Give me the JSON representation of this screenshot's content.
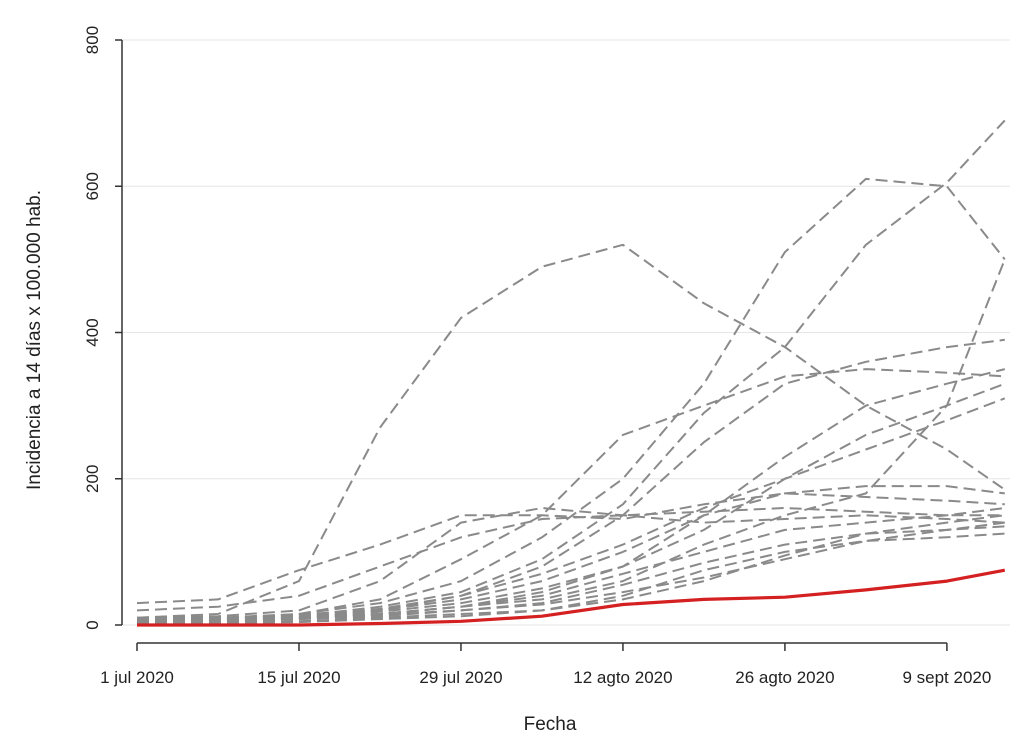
{
  "chart_data": {
    "type": "line",
    "xlabel": "Fecha",
    "ylabel": "Incidencia a 14 días x 100.000 hab.",
    "ylim": [
      0,
      800
    ],
    "yticks": [
      0,
      200,
      400,
      600,
      800
    ],
    "xlim": [
      0,
      73
    ],
    "xticks": [
      {
        "at": "2020-07-01",
        "label": "1 jul 2020"
      },
      {
        "at": "2020-07-15",
        "label": "15 jul 2020"
      },
      {
        "at": "2020-07-29",
        "label": "29 jul 2020"
      },
      {
        "at": "2020-08-12",
        "label": "12 agto 2020"
      },
      {
        "at": "2020-08-26",
        "label": "26 agto 2020"
      },
      {
        "at": "2020-09-09",
        "label": "9 sept 2020"
      }
    ],
    "grid": true,
    "highlight_color": "#d42020",
    "series_color": "#8a8a8a",
    "x_dates": [
      "2020-07-01",
      "2020-07-08",
      "2020-07-15",
      "2020-07-22",
      "2020-07-29",
      "2020-08-05",
      "2020-08-12",
      "2020-08-19",
      "2020-08-26",
      "2020-09-02",
      "2020-09-09",
      "2020-09-14"
    ],
    "series": [
      {
        "highlight": true,
        "values": [
          0,
          0,
          0,
          2,
          5,
          12,
          28,
          35,
          38,
          48,
          60,
          75
        ]
      },
      {
        "highlight": false,
        "values": [
          10,
          15,
          60,
          270,
          420,
          490,
          520,
          440,
          380,
          300,
          240,
          185
        ]
      },
      {
        "highlight": false,
        "values": [
          5,
          8,
          12,
          25,
          45,
          90,
          165,
          290,
          380,
          520,
          605,
          690
        ]
      },
      {
        "highlight": false,
        "values": [
          8,
          10,
          15,
          30,
          60,
          120,
          200,
          330,
          510,
          610,
          600,
          500
        ]
      },
      {
        "highlight": false,
        "values": [
          3,
          5,
          10,
          20,
          40,
          80,
          150,
          250,
          330,
          360,
          380,
          390
        ]
      },
      {
        "highlight": false,
        "values": [
          30,
          35,
          75,
          110,
          150,
          150,
          145,
          165,
          180,
          175,
          170,
          165
        ]
      },
      {
        "highlight": false,
        "values": [
          5,
          8,
          15,
          35,
          90,
          150,
          260,
          300,
          340,
          350,
          345,
          340
        ]
      },
      {
        "highlight": false,
        "values": [
          10,
          12,
          20,
          60,
          140,
          160,
          150,
          140,
          145,
          150,
          145,
          140
        ]
      },
      {
        "highlight": false,
        "values": [
          5,
          6,
          10,
          18,
          30,
          50,
          80,
          130,
          200,
          260,
          300,
          330
        ]
      },
      {
        "highlight": false,
        "values": [
          2,
          4,
          8,
          15,
          25,
          35,
          60,
          110,
          150,
          180,
          300,
          500
        ]
      },
      {
        "highlight": false,
        "values": [
          4,
          6,
          10,
          15,
          25,
          40,
          70,
          100,
          130,
          140,
          150,
          160
        ]
      },
      {
        "highlight": false,
        "values": [
          6,
          8,
          12,
          20,
          35,
          60,
          100,
          150,
          180,
          190,
          190,
          180
        ]
      },
      {
        "highlight": false,
        "values": [
          3,
          5,
          8,
          12,
          20,
          30,
          55,
          85,
          110,
          125,
          130,
          135
        ]
      },
      {
        "highlight": false,
        "values": [
          7,
          9,
          14,
          22,
          40,
          70,
          110,
          160,
          200,
          240,
          280,
          310
        ]
      },
      {
        "highlight": false,
        "values": [
          2,
          3,
          5,
          10,
          15,
          20,
          40,
          75,
          100,
          115,
          120,
          125
        ]
      },
      {
        "highlight": false,
        "values": [
          20,
          25,
          40,
          80,
          120,
          145,
          150,
          155,
          160,
          155,
          150,
          150
        ]
      },
      {
        "highlight": false,
        "values": [
          5,
          7,
          10,
          15,
          25,
          45,
          80,
          150,
          230,
          300,
          330,
          350
        ]
      },
      {
        "highlight": false,
        "values": [
          4,
          6,
          9,
          14,
          20,
          28,
          45,
          65,
          90,
          115,
          130,
          140
        ]
      },
      {
        "highlight": false,
        "values": [
          0,
          2,
          4,
          8,
          12,
          20,
          35,
          60,
          95,
          125,
          140,
          150
        ]
      }
    ]
  }
}
